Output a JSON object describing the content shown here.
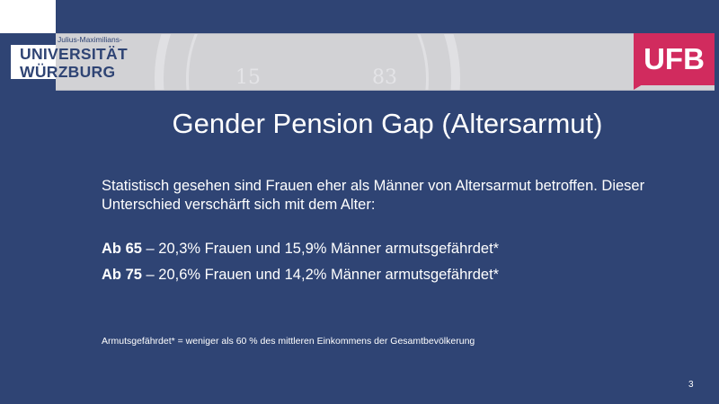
{
  "header": {
    "logo_university_small": "Julius-Maximilians-",
    "logo_university_line1": "UNIVERSITÄT",
    "logo_university_line2": "WÜRZBURG",
    "seal_year_left": "15",
    "seal_year_right": "83",
    "logo_ufb": "UFB"
  },
  "slide": {
    "title": "Gender Pension Gap (Altersarmut)",
    "intro": "Statistisch gesehen sind Frauen eher als Männer von Altersarmut betroffen. Dieser Unterschied verschärft sich mit dem Alter:",
    "items": [
      {
        "label": "Ab 65",
        "text": " – 20,3% Frauen und 15,9% Männer armutsgefährdet*"
      },
      {
        "label": "Ab 75",
        "text": " – 20,6% Frauen und 14,2% Männer armutsgefährdet*"
      }
    ],
    "footnote": "Armutsgefährdet* = weniger als 60 % des mittleren Einkommens der Gesamtbevölkerung",
    "page_number": "3"
  },
  "colors": {
    "background": "#2f4474",
    "band": "#d2d2d5",
    "ufb": "#d12b5e"
  }
}
